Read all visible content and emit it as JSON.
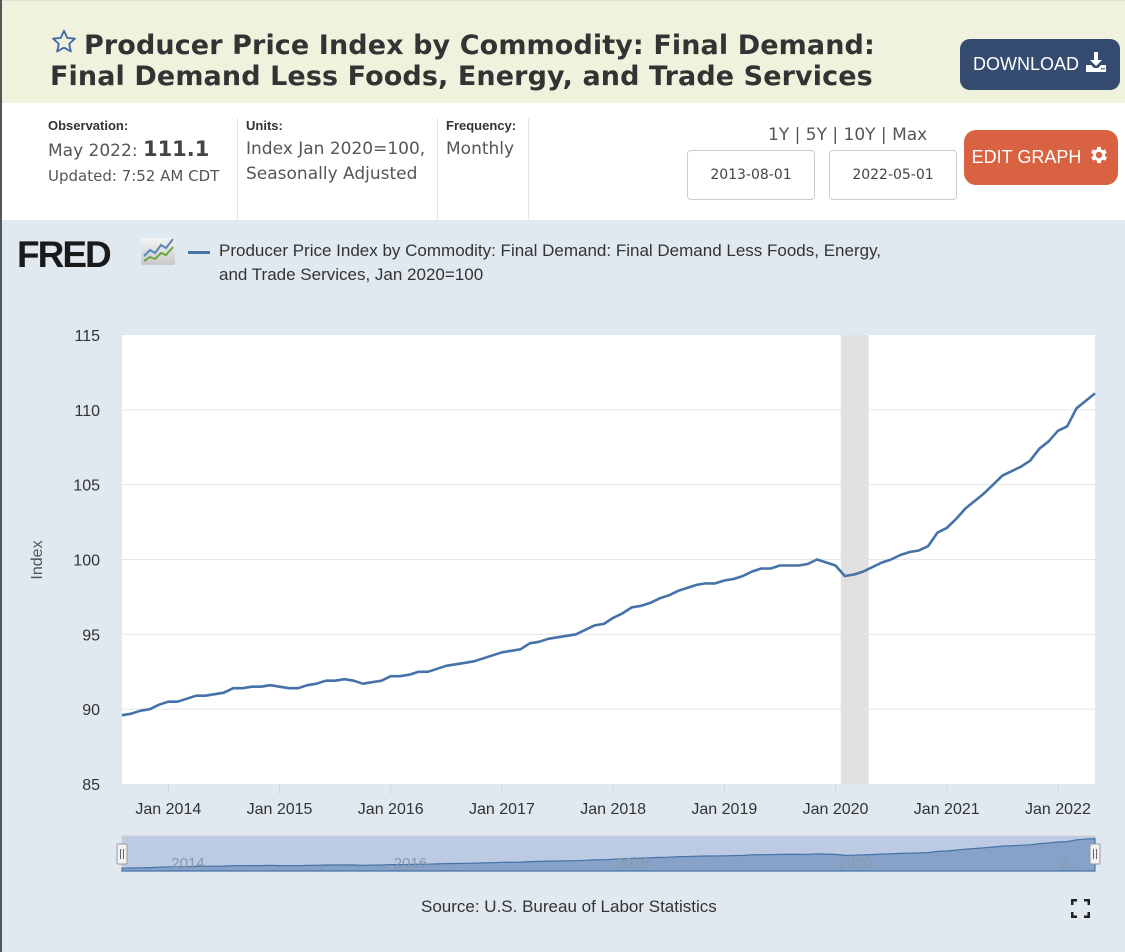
{
  "header": {
    "title": "Producer Price Index by Commodity: Final Demand: Final Demand Less Foods, Energy, and Trade Services",
    "series_id": "(WPSFD49116)",
    "favorite_icon": "star-outline-icon",
    "download_label": "DOWNLOAD",
    "download_icon": "download-icon"
  },
  "meta": {
    "observation_label": "Observation:",
    "observation_period": "May 2022:",
    "observation_value": "111.1",
    "updated": "Updated: 7:52 AM CDT",
    "units_label": "Units:",
    "units_line1": "Index Jan 2020=100,",
    "units_line2": "Seasonally Adjusted",
    "frequency_label": "Frequency:",
    "frequency_value": "Monthly"
  },
  "controls": {
    "range_links": [
      "1Y",
      "5Y",
      "10Y",
      "Max"
    ],
    "start_date": "2013-08-01",
    "end_date": "2022-05-01",
    "edit_label": "EDIT GRAPH",
    "edit_icon": "gear-icon"
  },
  "graph": {
    "logo_text": "FRED",
    "logo_icon": "fred-chart-icon",
    "series_color": "#4572a7",
    "recession_color": "#e1e1e1",
    "source": "Source: U.S. Bureau of Labor Statistics",
    "fullscreen_icon": "fullscreen-icon"
  },
  "chart_data": {
    "type": "line",
    "title": "",
    "legend": [
      "Producer Price Index by Commodity: Final Demand: Final Demand Less Foods, Energy, and Trade Services, Jan 2020=100"
    ],
    "legend_placement": "top-left",
    "xlabel": "",
    "ylabel": "Index",
    "ylim": [
      85,
      115
    ],
    "yticks": [
      85,
      90,
      95,
      100,
      105,
      110,
      115
    ],
    "grid": true,
    "x_start": "2013-08",
    "x_end": "2022-05",
    "xticks": [
      "Jan 2014",
      "Jan 2015",
      "Jan 2016",
      "Jan 2017",
      "Jan 2018",
      "Jan 2019",
      "Jan 2020",
      "Jan 2021",
      "Jan 2022"
    ],
    "navigator_labels": [
      "2014",
      "2016",
      "2018",
      "2020",
      "2..."
    ],
    "recessions": [
      [
        "2020-02",
        "2020-04"
      ]
    ],
    "series": [
      {
        "name": "WPSFD49116",
        "start": "2013-08",
        "frequency": "monthly",
        "values": [
          89.6,
          89.7,
          89.9,
          90.0,
          90.3,
          90.5,
          90.5,
          90.7,
          90.9,
          90.9,
          91.0,
          91.1,
          91.4,
          91.4,
          91.5,
          91.5,
          91.6,
          91.5,
          91.4,
          91.4,
          91.6,
          91.7,
          91.9,
          91.9,
          92.0,
          91.9,
          91.7,
          91.8,
          91.9,
          92.2,
          92.2,
          92.3,
          92.5,
          92.5,
          92.7,
          92.9,
          93.0,
          93.1,
          93.2,
          93.4,
          93.6,
          93.8,
          93.9,
          94.0,
          94.4,
          94.5,
          94.7,
          94.8,
          94.9,
          95.0,
          95.3,
          95.6,
          95.7,
          96.1,
          96.4,
          96.8,
          96.9,
          97.1,
          97.4,
          97.6,
          97.9,
          98.1,
          98.3,
          98.4,
          98.4,
          98.6,
          98.7,
          98.9,
          99.2,
          99.4,
          99.4,
          99.6,
          99.6,
          99.6,
          99.7,
          100.0,
          99.8,
          99.6,
          98.9,
          99.0,
          99.2,
          99.5,
          99.8,
          100.0,
          100.3,
          100.5,
          100.6,
          100.9,
          101.8,
          102.1,
          102.7,
          103.4,
          103.9,
          104.4,
          105.0,
          105.6,
          105.9,
          106.2,
          106.6,
          107.4,
          107.9,
          108.6,
          108.9,
          110.1,
          110.6,
          111.1
        ]
      }
    ]
  }
}
